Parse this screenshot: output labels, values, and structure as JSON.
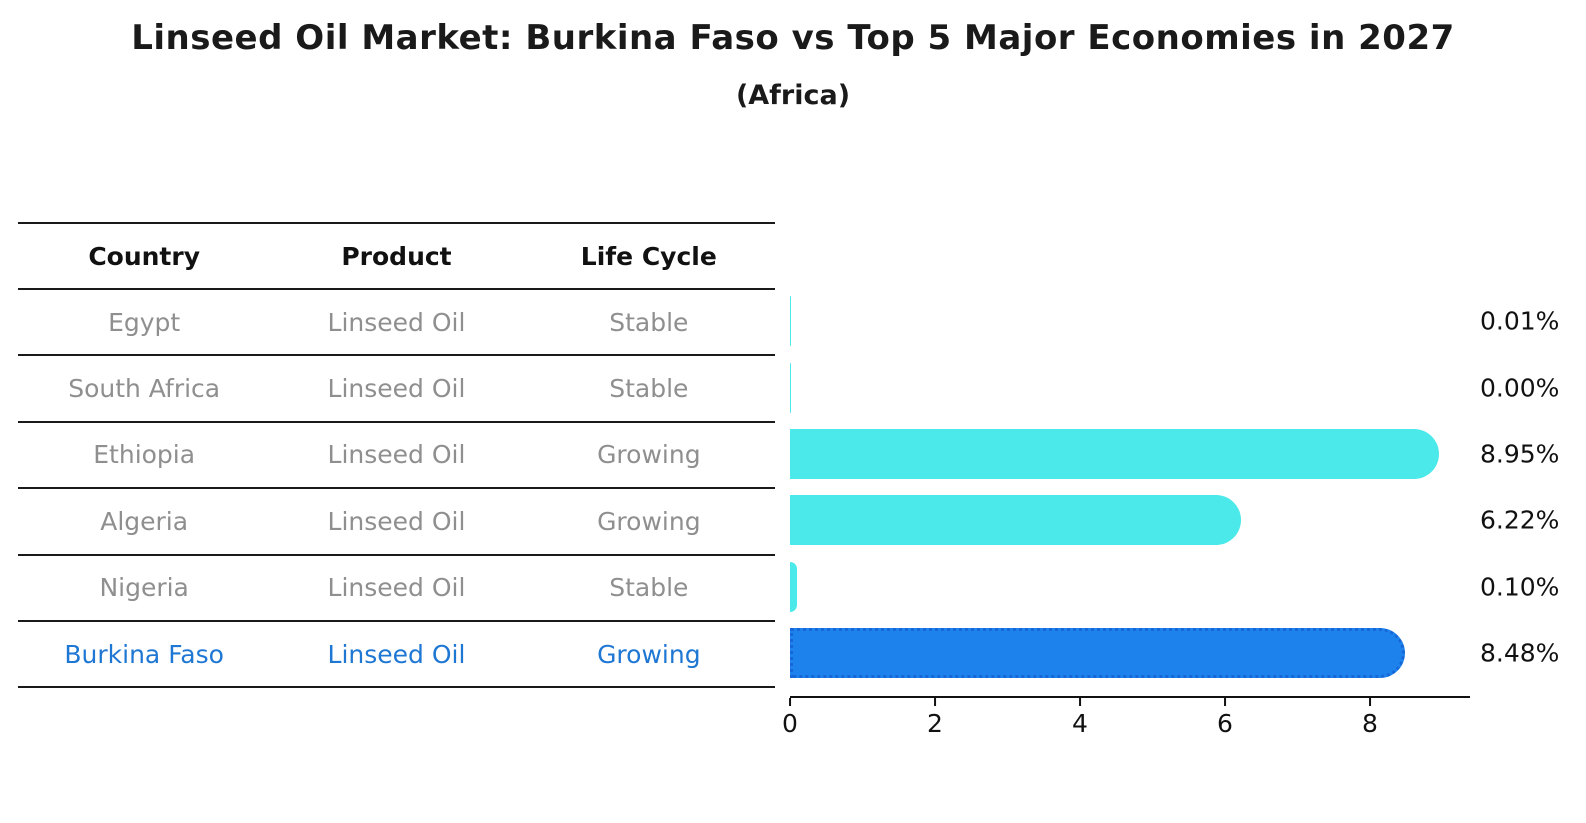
{
  "title": "Linseed Oil Market: Burkina Faso vs Top 5 Major Economies in 2027",
  "subtitle": "(Africa)",
  "table": {
    "headers": [
      "Country",
      "Product",
      "Life Cycle"
    ],
    "rows": [
      {
        "country": "Egypt",
        "product": "Linseed Oil",
        "life_cycle": "Stable",
        "highlight": false
      },
      {
        "country": "South Africa",
        "product": "Linseed Oil",
        "life_cycle": "Stable",
        "highlight": false
      },
      {
        "country": "Ethiopia",
        "product": "Linseed Oil",
        "life_cycle": "Growing",
        "highlight": false
      },
      {
        "country": "Algeria",
        "product": "Linseed Oil",
        "life_cycle": "Growing",
        "highlight": false
      },
      {
        "country": "Nigeria",
        "product": "Linseed Oil",
        "life_cycle": "Stable",
        "highlight": false
      },
      {
        "country": "Burkina Faso",
        "product": "Linseed Oil",
        "life_cycle": "Growing",
        "highlight": true
      }
    ]
  },
  "chart_data": {
    "type": "bar",
    "orientation": "horizontal",
    "title": "Linseed Oil Market: Burkina Faso vs Top 5 Major Economies in 2027 (Africa)",
    "categories": [
      "Egypt",
      "South Africa",
      "Ethiopia",
      "Algeria",
      "Nigeria",
      "Burkina Faso"
    ],
    "values": [
      0.01,
      0.0,
      8.95,
      6.22,
      0.1,
      8.48
    ],
    "value_labels": [
      "0.01%",
      "0.00%",
      "8.95%",
      "6.22%",
      "0.10%",
      "8.48%"
    ],
    "xticks": [
      "0",
      "2",
      "4",
      "6",
      "8"
    ],
    "xtick_values": [
      0,
      2,
      4,
      6,
      8
    ],
    "xlim": [
      0,
      9.38
    ],
    "highlight_index": 5,
    "grid": false,
    "legend": false
  },
  "colors": {
    "default_bar": "#4BE9E9",
    "highlight_bar": "#1E82EC",
    "highlight_dots": "#1668D8",
    "highlight_text": "#1F77D4",
    "table_text": "#8f8f8f",
    "axis": "#111111"
  }
}
